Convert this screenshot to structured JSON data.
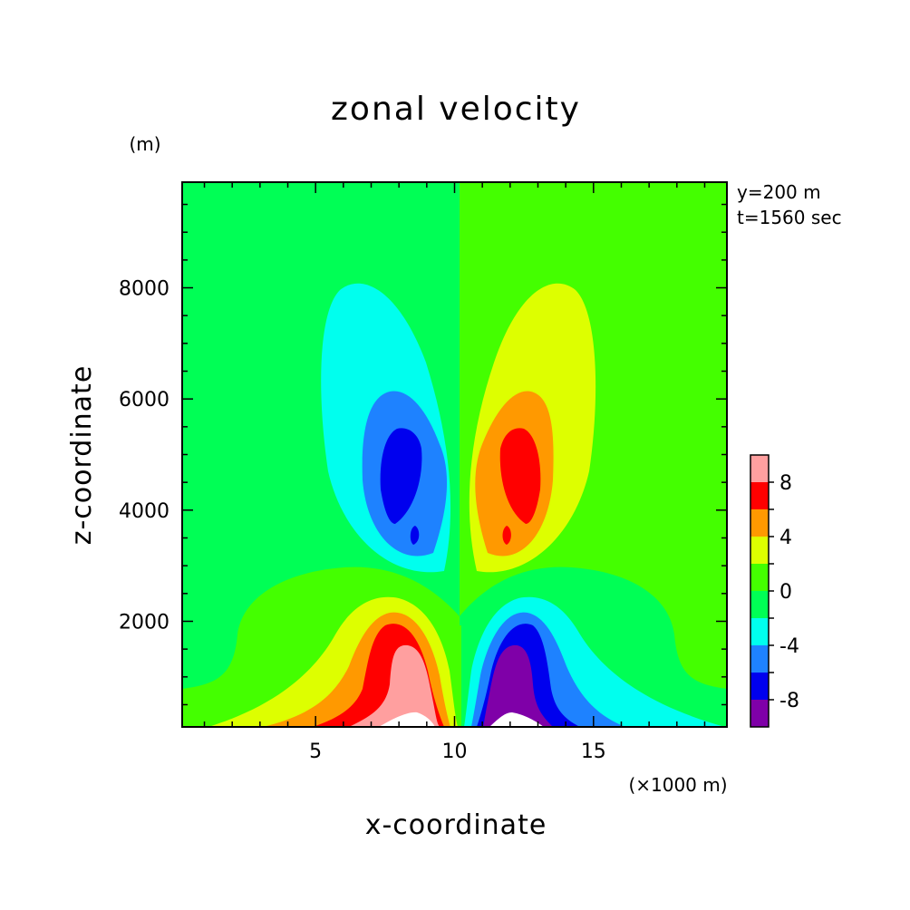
{
  "chart_data": {
    "type": "heatmap",
    "title": "zonal velocity",
    "xlabel": "x-coordinate",
    "ylabel": "z-coordinate",
    "x_unit": "(×1000 m)",
    "y_unit": "(m)",
    "annotations": [
      "y=200 m",
      "t=1560 sec"
    ],
    "xlim": [
      0.2,
      19.8
    ],
    "ylim": [
      100,
      9900
    ],
    "x_ticks": [
      5,
      10,
      15
    ],
    "y_ticks": [
      2000,
      4000,
      6000,
      8000
    ],
    "colorbar": {
      "labels": [
        "8",
        "4",
        "0",
        "-4",
        "-8"
      ],
      "label_values": [
        8,
        4,
        0,
        -4,
        -8
      ],
      "vmin": -10,
      "vmax": 10,
      "levels": [
        {
          "min": -10,
          "max": -8,
          "color": "#7f00a8"
        },
        {
          "min": -8,
          "max": -6,
          "color": "#0000ee"
        },
        {
          "min": -6,
          "max": -4,
          "color": "#1e82ff"
        },
        {
          "min": -4,
          "max": -2,
          "color": "#00ffee"
        },
        {
          "min": -2,
          "max": 0,
          "color": "#00ff55"
        },
        {
          "min": 0,
          "max": 2,
          "color": "#44ff00"
        },
        {
          "min": 2,
          "max": 4,
          "color": "#ddff00"
        },
        {
          "min": 4,
          "max": 6,
          "color": "#ff9900"
        },
        {
          "min": 6,
          "max": 8,
          "color": "#ff0000"
        },
        {
          "min": 8,
          "max": 10,
          "color": "#ff9f9f"
        }
      ]
    },
    "field_extrema": {
      "upper_left_min": {
        "x": 8.0,
        "z": 4600,
        "value": -8
      },
      "upper_right_max": {
        "x": 12.0,
        "z": 4600,
        "value": 8
      },
      "lower_left_max": {
        "x": 8.4,
        "z": 200,
        "value": 10
      },
      "lower_right_min": {
        "x": 11.6,
        "z": 200,
        "value": -10
      }
    }
  }
}
